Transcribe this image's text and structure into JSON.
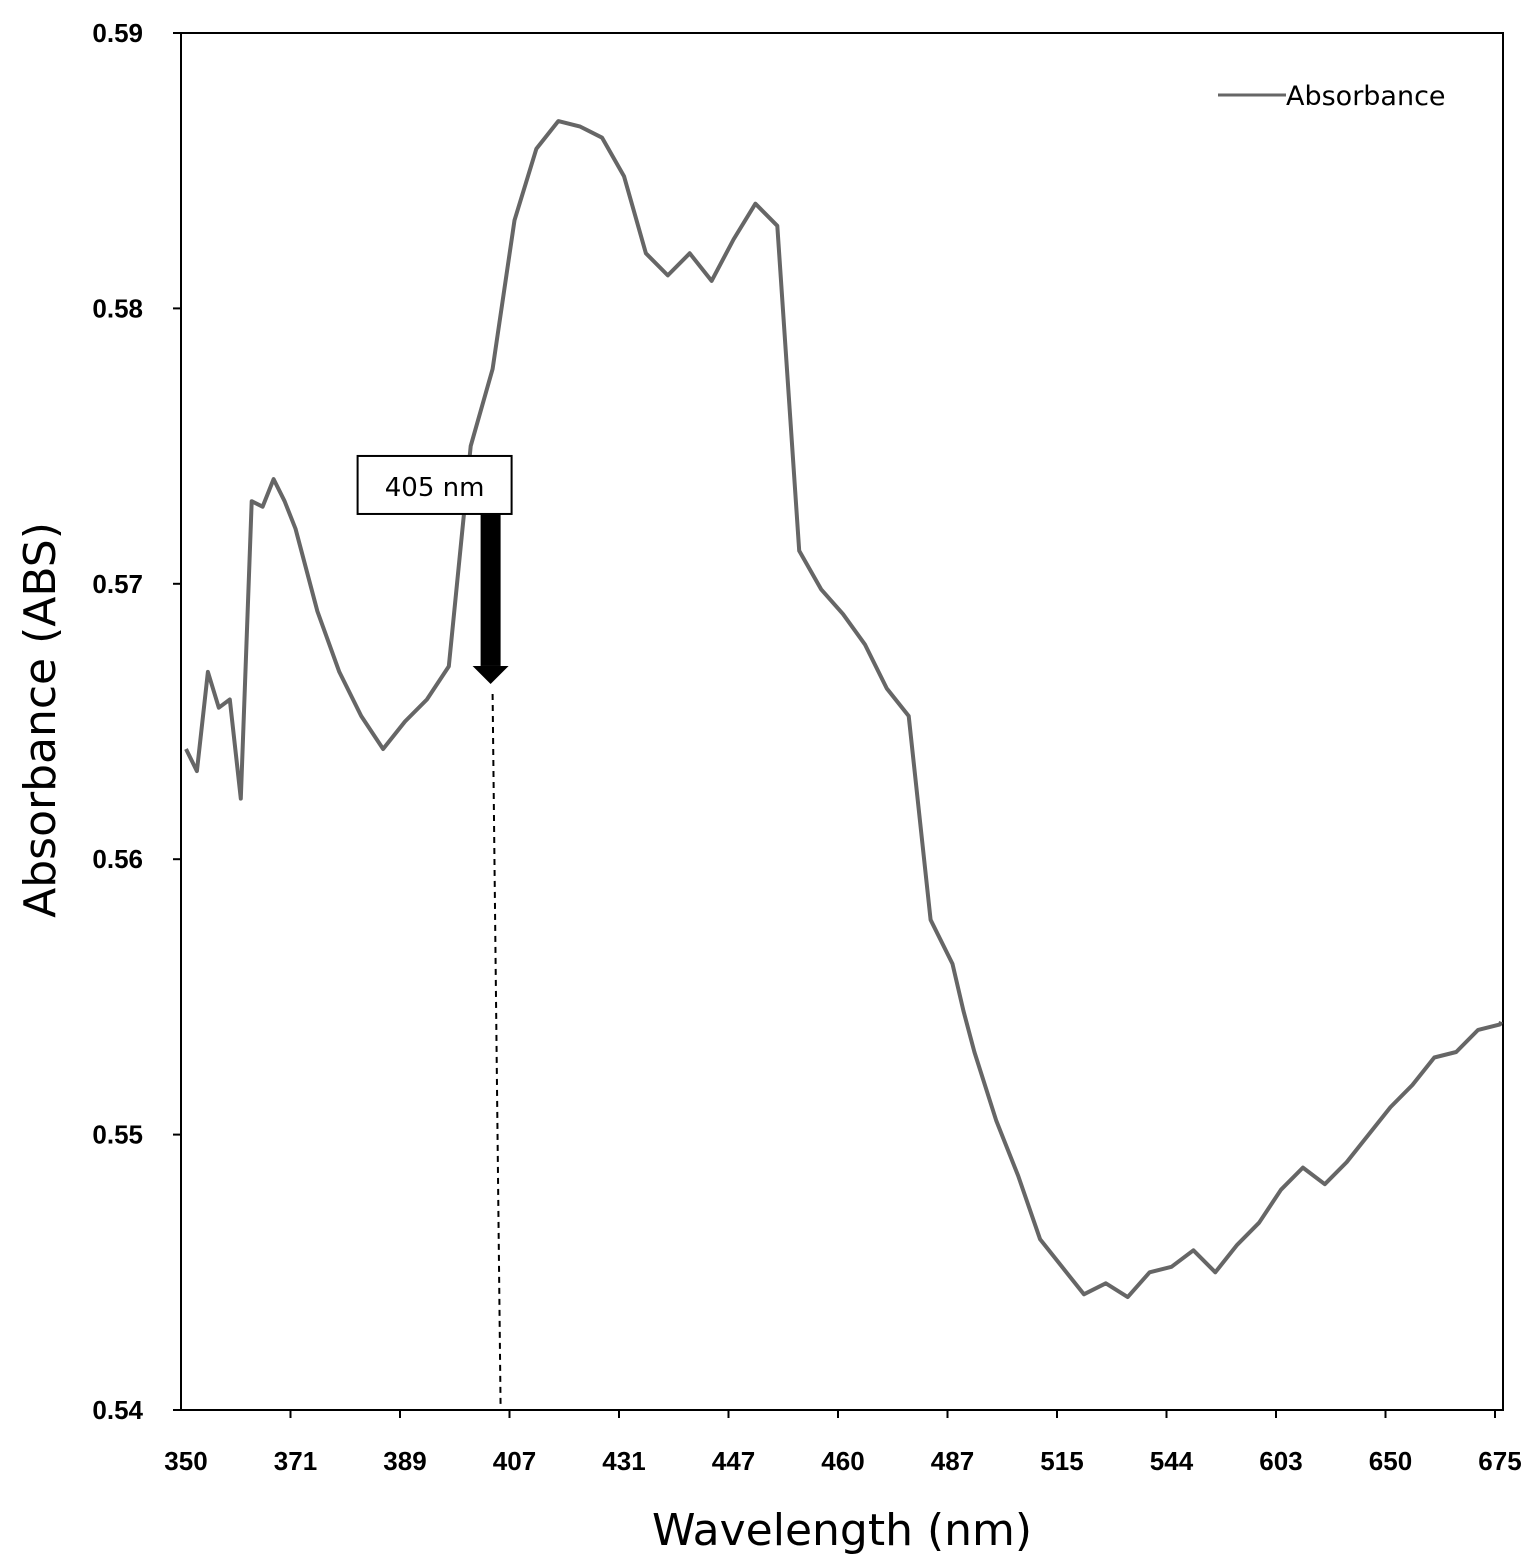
{
  "chart_data": {
    "type": "line",
    "xlabel": "Wavelength (nm)",
    "ylabel": "Absorbance (ABS)",
    "ylim": [
      0.54,
      0.59
    ],
    "y_ticks": [
      "0.54",
      "0.55",
      "0.56",
      "0.57",
      "0.58",
      "0.59"
    ],
    "x_tick_labels": [
      "350",
      "371",
      "389",
      "407",
      "431",
      "447",
      "460",
      "487",
      "515",
      "544",
      "603",
      "650",
      "675"
    ],
    "grid": false,
    "legend_position": "top-right",
    "line_color": "#666666",
    "series": [
      {
        "name": "Absorbance",
        "x_tick_index": [
          0.0,
          0.1,
          0.2,
          0.3,
          0.4,
          0.5,
          0.6,
          0.7,
          0.8,
          0.9,
          1.0,
          1.2,
          1.4,
          1.6,
          1.8,
          2.0,
          2.2,
          2.4,
          2.6,
          2.8,
          3.0,
          3.2,
          3.4,
          3.6,
          3.8,
          4.0,
          4.2,
          4.4,
          4.6,
          4.8,
          5.0,
          5.2,
          5.4,
          5.6,
          5.8,
          6.0,
          6.2,
          6.4,
          6.6,
          6.8,
          7.0,
          7.1,
          7.2,
          7.4,
          7.6,
          7.8,
          8.0,
          8.2,
          8.4,
          8.6,
          8.8,
          9.0,
          9.2,
          9.4,
          9.6,
          9.8,
          10.0,
          10.2,
          10.4,
          10.6,
          10.8,
          11.0,
          11.2,
          11.4,
          11.6,
          11.8,
          12.0,
          12.2
        ],
        "values": [
          0.564,
          0.5632,
          0.5668,
          0.5655,
          0.5658,
          0.5622,
          0.573,
          0.5728,
          0.5738,
          0.573,
          0.572,
          0.569,
          0.5668,
          0.5652,
          0.564,
          0.565,
          0.5658,
          0.567,
          0.575,
          0.5778,
          0.5832,
          0.5858,
          0.5868,
          0.5866,
          0.5862,
          0.5848,
          0.582,
          0.5812,
          0.582,
          0.581,
          0.5825,
          0.5838,
          0.583,
          0.5712,
          0.5698,
          0.5689,
          0.5678,
          0.5662,
          0.5652,
          0.5578,
          0.5562,
          0.5545,
          0.553,
          0.5505,
          0.5485,
          0.5462,
          0.5452,
          0.5442,
          0.5446,
          0.5441,
          0.545,
          0.5452,
          0.5458,
          0.545,
          0.546,
          0.5468,
          0.548,
          0.5488,
          0.5482,
          0.549,
          0.55,
          0.551,
          0.5518,
          0.5528,
          0.553,
          0.5538,
          0.554,
          0.5541
        ]
      }
    ],
    "annotations": [
      {
        "text": "405 nm",
        "x_tick_index": 2.8,
        "y": 0.566
      }
    ]
  }
}
